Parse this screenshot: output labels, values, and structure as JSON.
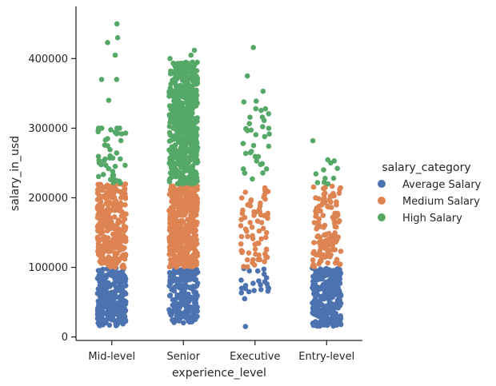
{
  "chart_data": {
    "type": "scatter",
    "subtype": "strip",
    "xlabel": "experience_level",
    "ylabel": "salary_in_usd",
    "categories": [
      "Mid-level",
      "Senior",
      "Executive",
      "Entry-level"
    ],
    "ylim": [
      -5000,
      475000
    ],
    "yticks": [
      0,
      100000,
      200000,
      300000,
      400000
    ],
    "ytick_labels": [
      "0",
      "100000",
      "200000",
      "300000",
      "400000"
    ],
    "grid": false,
    "legend": {
      "title": "salary_category",
      "placement": "right"
    },
    "series": [
      {
        "name": "Average Salary",
        "color": "#4c72b0",
        "groups": {
          "Mid-level": {
            "min": 16000,
            "max": 99000,
            "count": 260
          },
          "Senior": {
            "min": 20000,
            "max": 99000,
            "count": 200
          },
          "Executive": {
            "min": 15000,
            "max": 99000,
            "count": 18,
            "sparse": true
          },
          "Entry-level": {
            "min": 15000,
            "max": 99000,
            "count": 280
          }
        },
        "points": [
          {
            "category": "Executive",
            "y": 15000
          },
          {
            "category": "Executive",
            "y": 55000
          },
          {
            "category": "Executive",
            "y": 70000
          },
          {
            "category": "Executive",
            "y": 75000
          },
          {
            "category": "Executive",
            "y": 85000
          },
          {
            "category": "Executive",
            "y": 95000
          },
          {
            "category": "Senior",
            "y": 25000
          },
          {
            "category": "Senior",
            "y": 30000
          },
          {
            "category": "Mid-level",
            "y": 20000
          }
        ]
      },
      {
        "name": "Medium Salary",
        "color": "#dd8452",
        "groups": {
          "Mid-level": {
            "min": 100000,
            "max": 220000,
            "count": 320
          },
          "Senior": {
            "min": 100000,
            "max": 218000,
            "count": 460
          },
          "Executive": {
            "min": 100000,
            "max": 218000,
            "count": 70
          },
          "Entry-level": {
            "min": 100000,
            "max": 218000,
            "count": 120
          }
        },
        "points": [
          {
            "category": "Entry-level",
            "y": 205000
          },
          {
            "category": "Entry-level",
            "y": 215000
          },
          {
            "category": "Entry-level",
            "y": 200000
          }
        ]
      },
      {
        "name": "High Salary",
        "color": "#55a868",
        "groups": {
          "Mid-level": {
            "min": 220000,
            "max": 300000,
            "count": 40
          },
          "Senior": {
            "min": 220000,
            "max": 395000,
            "count": 520
          },
          "Executive": {
            "min": 220000,
            "max": 340000,
            "count": 34
          },
          "Entry-level": {
            "min": 220000,
            "max": 255000,
            "count": 6
          }
        },
        "points": [
          {
            "category": "Mid-level",
            "y": 450000
          },
          {
            "category": "Mid-level",
            "y": 430000
          },
          {
            "category": "Mid-level",
            "y": 423000
          },
          {
            "category": "Mid-level",
            "y": 405000
          },
          {
            "category": "Mid-level",
            "y": 370000
          },
          {
            "category": "Mid-level",
            "y": 370000
          },
          {
            "category": "Mid-level",
            "y": 340000
          },
          {
            "category": "Mid-level",
            "y": 300000
          },
          {
            "category": "Mid-level",
            "y": 300000
          },
          {
            "category": "Mid-level",
            "y": 300000
          },
          {
            "category": "Mid-level",
            "y": 300000
          },
          {
            "category": "Mid-level",
            "y": 300000
          },
          {
            "category": "Senior",
            "y": 412000
          },
          {
            "category": "Senior",
            "y": 405000
          },
          {
            "category": "Senior",
            "y": 400000
          },
          {
            "category": "Executive",
            "y": 416000
          },
          {
            "category": "Executive",
            "y": 375000
          },
          {
            "category": "Executive",
            "y": 353000
          },
          {
            "category": "Entry-level",
            "y": 282000
          },
          {
            "category": "Entry-level",
            "y": 253000
          },
          {
            "category": "Entry-level",
            "y": 250000
          },
          {
            "category": "Entry-level",
            "y": 240000
          },
          {
            "category": "Entry-level",
            "y": 228000
          },
          {
            "category": "Entry-level",
            "y": 220000
          }
        ]
      }
    ]
  }
}
